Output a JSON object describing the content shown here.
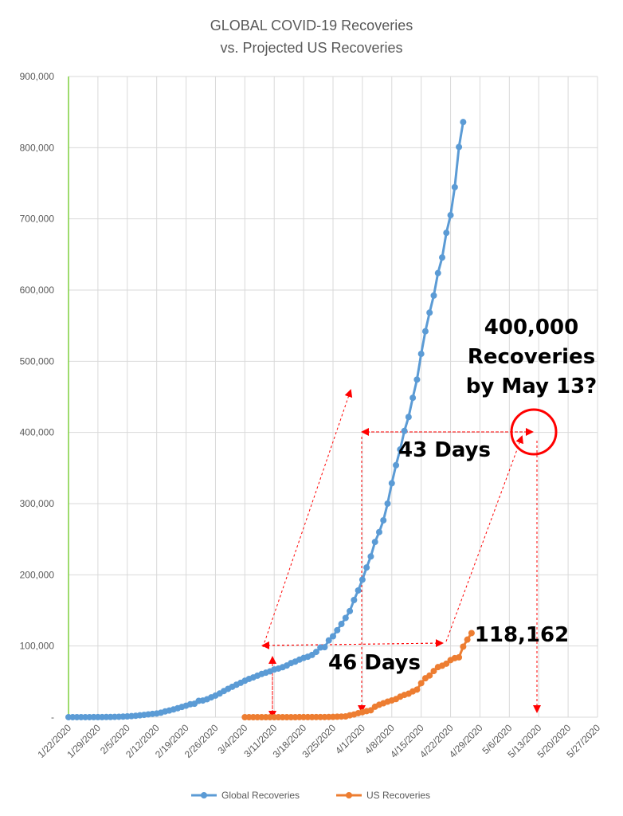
{
  "chart_data": {
    "type": "line",
    "title": [
      "GLOBAL COVID-19 Recoveries",
      "vs. Projected US Recoveries"
    ],
    "xlabel": "",
    "ylabel": "",
    "ylim": [
      0,
      900000
    ],
    "y_ticks": [
      "-",
      "100,000",
      "200,000",
      "300,000",
      "400,000",
      "500,000",
      "600,000",
      "700,000",
      "800,000",
      "900,000"
    ],
    "x_ticks": [
      "1/22/2020",
      "1/29/2020",
      "2/5/2020",
      "2/12/2020",
      "2/19/2020",
      "2/26/2020",
      "3/4/2020",
      "3/11/2020",
      "3/18/2020",
      "3/25/2020",
      "4/1/2020",
      "4/8/2020",
      "4/15/2020",
      "4/22/2020",
      "4/29/2020",
      "5/6/2020",
      "5/13/2020",
      "5/20/2020",
      "5/27/2020"
    ],
    "grid": true,
    "legend_position": "bottom",
    "series": [
      {
        "name": "Global Recoveries",
        "color": "#5b9bd5",
        "start_date": "1/22/2020",
        "values": [
          28,
          30,
          36,
          39,
          52,
          61,
          107,
          126,
          143,
          222,
          284,
          472,
          623,
          852,
          1124,
          1487,
          2011,
          2616,
          3244,
          3946,
          4683,
          5150,
          6295,
          8058,
          9395,
          10865,
          12583,
          14352,
          16121,
          18177,
          18890,
          22886,
          23394,
          25227,
          27905,
          30384,
          33277,
          36711,
          39782,
          42716,
          45602,
          48228,
          51170,
          53796,
          55865,
          58358,
          60694,
          62494,
          64404,
          67003,
          68324,
          70251,
          72624,
          76034,
          78088,
          80840,
          83207,
          84935,
          87403,
          91692,
          97899,
          98351,
          107885,
          113604,
          122203,
          130915,
          139415,
          149082,
          164566,
          178034,
          193177,
          210263,
          225796,
          246152,
          260012,
          276515,
          300054,
          328661,
          353975,
          376096,
          402110,
          421722,
          448655,
          474261,
          510357,
          542107,
          568343,
          592319,
          623903,
          645738,
          680400,
          705203,
          744608,
          801000,
          836000
        ]
      },
      {
        "name": "US Recoveries",
        "color": "#ed7d31",
        "start_date": "3/4/2020",
        "values": [
          0,
          0,
          0,
          0,
          0,
          0,
          0,
          0,
          0,
          0,
          0,
          0,
          0,
          106,
          106,
          108,
          125,
          171,
          178,
          178,
          348,
          361,
          681,
          869,
          1072,
          2665,
          3780,
          5644,
          7024,
          8474,
          9707,
          14652,
          17448,
          19581,
          21763,
          23559,
          25410,
          28790,
          31270,
          32988,
          36254,
          38820,
          47763,
          54703,
          58545,
          64840,
          70337,
          72329,
          75204,
          80203,
          82973,
          84050,
          99079,
          108966,
          118162
        ]
      }
    ],
    "annotations": {
      "target_line1": "400,000",
      "target_line2": "Recoveries",
      "target_line3": "by May 13?",
      "days_upper": "43 Days",
      "days_lower": "46 Days",
      "us_last_value": "118,162"
    }
  }
}
